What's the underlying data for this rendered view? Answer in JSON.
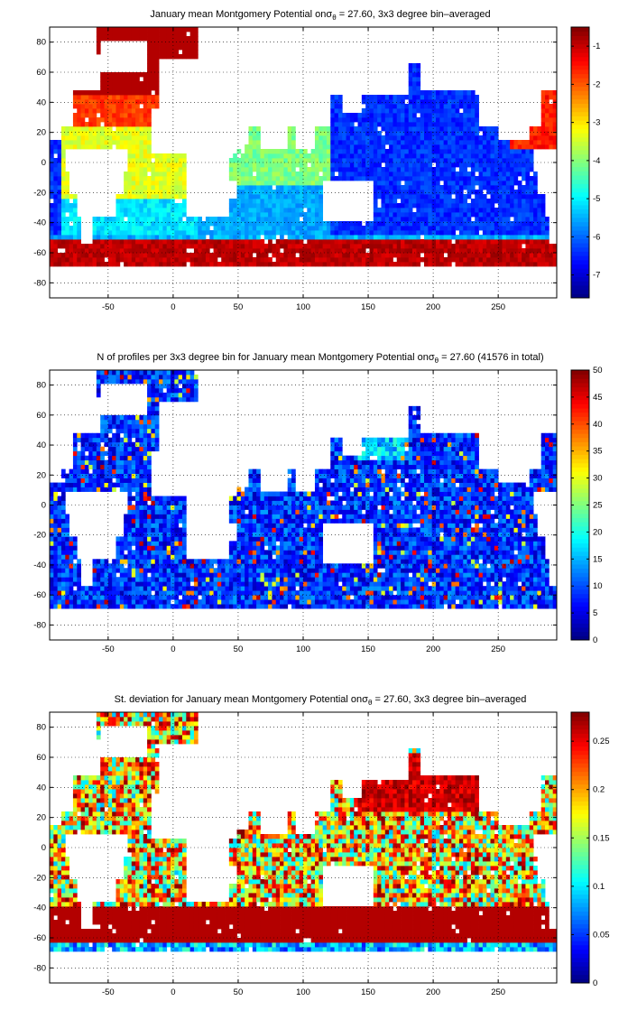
{
  "chart_data": [
    {
      "type": "heatmap",
      "title": "January mean Montgomery Potential on",
      "title_symbol": "σ",
      "title_subscript": "θ",
      "title_tail": " = 27.60, 3x3 degree bin–averaged",
      "xlim": [
        -95,
        295
      ],
      "ylim": [
        -90,
        90
      ],
      "xticks": [
        "-50",
        "0",
        "50",
        "100",
        "150",
        "200",
        "250"
      ],
      "xtick_values": [
        -50,
        0,
        50,
        100,
        150,
        200,
        250
      ],
      "yticks": [
        "80",
        "60",
        "40",
        "20",
        "0",
        "-20",
        "-40",
        "-60",
        "-80"
      ],
      "ytick_values": [
        80,
        60,
        40,
        20,
        0,
        -20,
        -40,
        -60,
        -80
      ],
      "colorbar": {
        "range": [
          -7.6,
          -0.5
        ],
        "ticks": [
          "-1",
          "-2",
          "-3",
          "-4",
          "-5",
          "-6",
          "-7"
        ],
        "tick_values": [
          -1,
          -2,
          -3,
          -4,
          -5,
          -6,
          -7
        ],
        "colormap": "jet"
      },
      "grid": "dotted"
    },
    {
      "type": "heatmap",
      "title": "N of profiles per 3x3 degree bin for January mean Montgomery Potential on",
      "title_symbol": "σ",
      "title_subscript": "θ",
      "title_tail": " = 27.60 (41576 in total)",
      "xlim": [
        -95,
        295
      ],
      "ylim": [
        -90,
        90
      ],
      "xticks": [
        "-50",
        "0",
        "50",
        "100",
        "150",
        "200",
        "250"
      ],
      "xtick_values": [
        -50,
        0,
        50,
        100,
        150,
        200,
        250
      ],
      "yticks": [
        "80",
        "60",
        "40",
        "20",
        "0",
        "-20",
        "-40",
        "-60",
        "-80"
      ],
      "ytick_values": [
        80,
        60,
        40,
        20,
        0,
        -20,
        -40,
        -60,
        -80
      ],
      "colorbar": {
        "range": [
          0,
          50
        ],
        "ticks": [
          "50",
          "45",
          "40",
          "35",
          "30",
          "25",
          "20",
          "15",
          "10",
          "5",
          "0"
        ],
        "tick_values": [
          50,
          45,
          40,
          35,
          30,
          25,
          20,
          15,
          10,
          5,
          0
        ],
        "colormap": "jet"
      },
      "grid": "dotted"
    },
    {
      "type": "heatmap",
      "title": "St. deviation for January mean Montgomery Potential on",
      "title_symbol": "σ",
      "title_subscript": "θ",
      "title_tail": " = 27.60, 3x3 degree bin–averaged",
      "xlim": [
        -95,
        295
      ],
      "ylim": [
        -90,
        90
      ],
      "xticks": [
        "-50",
        "0",
        "50",
        "100",
        "150",
        "200",
        "250"
      ],
      "xtick_values": [
        -50,
        0,
        50,
        100,
        150,
        200,
        250
      ],
      "yticks": [
        "80",
        "60",
        "40",
        "20",
        "0",
        "-20",
        "-40",
        "-60",
        "-80"
      ],
      "ytick_values": [
        80,
        60,
        40,
        20,
        0,
        -20,
        -40,
        -60,
        -80
      ],
      "colorbar": {
        "range": [
          0,
          0.28
        ],
        "ticks": [
          "0.25",
          "0.2",
          "0.15",
          "0.1",
          "0.05",
          "0"
        ],
        "tick_values": [
          0.25,
          0.2,
          0.15,
          0.1,
          0.05,
          0
        ],
        "colormap": "jet"
      },
      "grid": "dotted"
    }
  ]
}
